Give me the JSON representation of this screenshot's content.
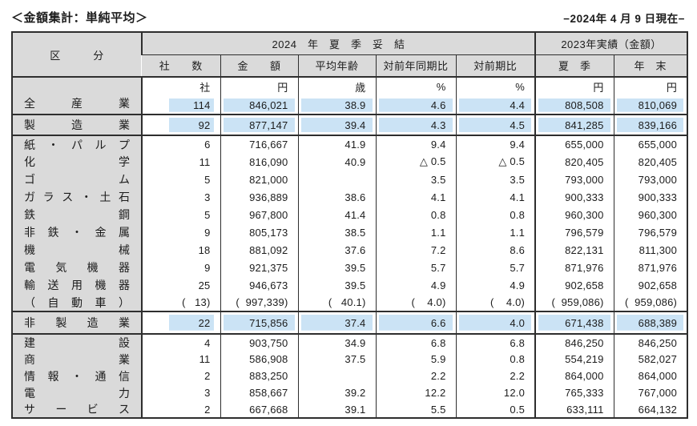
{
  "colors": {
    "highlight": "#cbe3f5",
    "header_bg": "#dadada",
    "border": "#2e2e2e"
  },
  "page": {
    "title": "＜金額集計：単純平均＞",
    "date_note": "−2024年 4 月 9 日現在−"
  },
  "table": {
    "header": {
      "category": "区　　　分",
      "group_2024": "2024　年　夏　季　妥　結",
      "group_2023": "2023年実績（金額）",
      "columns": [
        "社　　数",
        "金　　額",
        "平均年齢",
        "対前年同期比",
        "対前期比",
        "夏　季",
        "年　末"
      ]
    },
    "units": [
      "社",
      "円",
      "歳",
      "%",
      "%",
      "円",
      "円"
    ],
    "groups": [
      {
        "kind": "all",
        "units_above": true,
        "rows": [
          {
            "label": "全産業",
            "highlight": true,
            "values": [
              "114",
              "846,021",
              "38.9",
              "4.6",
              "4.4",
              "808,508",
              "810,069"
            ]
          }
        ]
      },
      {
        "kind": "mfg",
        "rows": [
          {
            "label": "製造業",
            "highlight": true,
            "values": [
              "92",
              "877,147",
              "39.4",
              "4.3",
              "4.5",
              "841,285",
              "839,166"
            ]
          }
        ]
      },
      {
        "kind": "mfg-detail",
        "rows": [
          {
            "label": "紙・パルプ",
            "values": [
              "6",
              "716,667",
              "41.9",
              "9.4",
              "9.4",
              "655,000",
              "655,000"
            ]
          },
          {
            "label": "化学",
            "values": [
              "11",
              "816,090",
              "40.9",
              "△ 0.5",
              "△ 0.5",
              "820,405",
              "820,405"
            ]
          },
          {
            "label": "ゴム",
            "values": [
              "5",
              "821,000",
              "",
              "3.5",
              "3.5",
              "793,000",
              "793,000"
            ]
          },
          {
            "label": "ガラス・土石",
            "values": [
              "3",
              "936,889",
              "38.6",
              "4.1",
              "4.1",
              "900,333",
              "900,333"
            ]
          },
          {
            "label": "鉄鋼",
            "values": [
              "5",
              "967,800",
              "41.4",
              "0.8",
              "0.8",
              "960,300",
              "960,300"
            ]
          },
          {
            "label": "非鉄・金属",
            "values": [
              "9",
              "805,173",
              "38.5",
              "1.1",
              "1.1",
              "796,579",
              "796,579"
            ]
          },
          {
            "label": "機械",
            "values": [
              "18",
              "881,092",
              "37.6",
              "7.2",
              "8.6",
              "822,131",
              "811,300"
            ]
          },
          {
            "label": "電気機器",
            "values": [
              "9",
              "921,375",
              "39.5",
              "5.7",
              "5.7",
              "871,976",
              "871,976"
            ]
          },
          {
            "label": "輸送用機器",
            "values": [
              "25",
              "946,673",
              "39.5",
              "4.9",
              "4.9",
              "902,658",
              "902,658"
            ]
          },
          {
            "label": "（自動車）",
            "values": [
              "(   13)",
              "(  997,339)",
              "(   40.1)",
              "(    4.0)",
              "(    4.0)",
              "(  959,086)",
              "(  959,086)"
            ]
          }
        ]
      },
      {
        "kind": "nonmfg",
        "rows": [
          {
            "label": "非製造業",
            "highlight": true,
            "values": [
              "22",
              "715,856",
              "37.4",
              "6.6",
              "4.0",
              "671,438",
              "688,389"
            ]
          }
        ]
      },
      {
        "kind": "nonmfg-detail",
        "rows": [
          {
            "label": "建設",
            "values": [
              "4",
              "903,750",
              "34.9",
              "6.8",
              "6.8",
              "846,250",
              "846,250"
            ]
          },
          {
            "label": "商業",
            "values": [
              "11",
              "586,908",
              "37.5",
              "5.9",
              "0.8",
              "554,219",
              "582,027"
            ]
          },
          {
            "label": "情報・通信",
            "values": [
              "2",
              "883,250",
              "",
              "2.2",
              "2.2",
              "864,000",
              "864,000"
            ]
          },
          {
            "label": "電力",
            "values": [
              "3",
              "858,667",
              "39.2",
              "12.2",
              "12.0",
              "765,333",
              "767,000"
            ]
          },
          {
            "label": "サービス",
            "values": [
              "2",
              "667,668",
              "39.1",
              "5.5",
              "0.5",
              "633,111",
              "664,132"
            ]
          }
        ]
      }
    ]
  }
}
